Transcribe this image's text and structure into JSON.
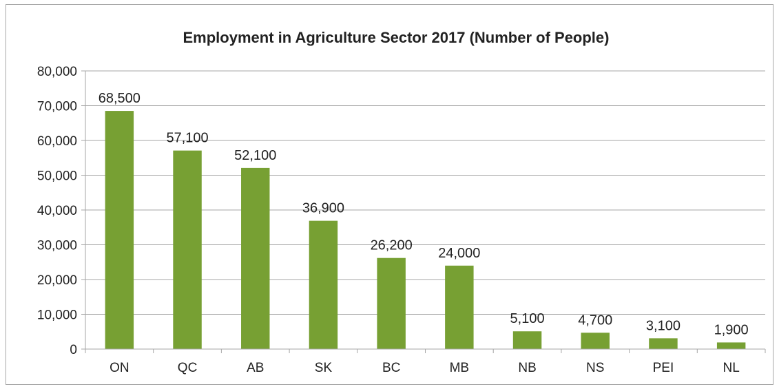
{
  "chart_data": {
    "type": "bar",
    "title": "Employment in Agriculture Sector 2017 (Number of People)",
    "xlabel": "",
    "ylabel": "",
    "categories": [
      "ON",
      "QC",
      "AB",
      "SK",
      "BC",
      "MB",
      "NB",
      "NS",
      "PEI",
      "NL"
    ],
    "values": [
      68500,
      57100,
      52100,
      36900,
      26200,
      24000,
      5100,
      4700,
      3100,
      1900
    ],
    "data_labels": [
      "68,500",
      "57,100",
      "52,100",
      "36,900",
      "26,200",
      "24,000",
      "5,100",
      "4,700",
      "3,100",
      "1,900"
    ],
    "ylim": [
      0,
      80000
    ],
    "yticks": [
      0,
      10000,
      20000,
      30000,
      40000,
      50000,
      60000,
      70000,
      80000
    ],
    "ytick_labels": [
      "0",
      "10,000",
      "20,000",
      "30,000",
      "40,000",
      "50,000",
      "60,000",
      "70,000",
      "80,000"
    ],
    "grid": true,
    "legend": "none",
    "bar_color": "#77a033",
    "grid_color": "#a6a6a6"
  }
}
